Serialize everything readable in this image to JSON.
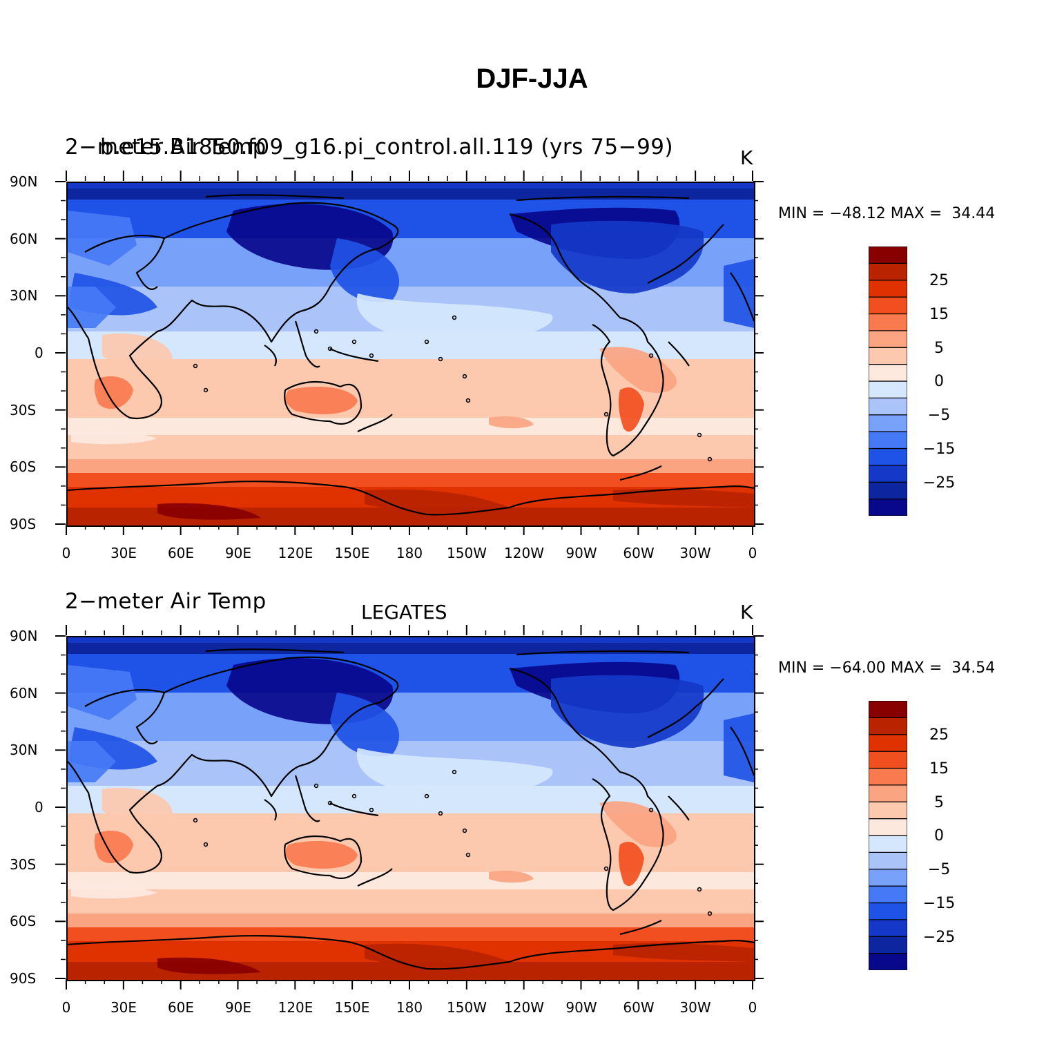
{
  "title": "DJF-JJA",
  "colors": {
    "levels": [
      "#08088c",
      "#0d259e",
      "#1538c8",
      "#1f52e6",
      "#4679f5",
      "#78a1fa",
      "#aac4fa",
      "#d5e7fd",
      "#fde8de",
      "#fcc8ae",
      "#fba481",
      "#f97a4f",
      "#f24f20",
      "#e03200",
      "#b92300",
      "#880000"
    ],
    "land_outline": "#000000"
  },
  "color_bar": {
    "labels": [
      "25",
      "15",
      "5",
      "0",
      "−5",
      "−15",
      "−25"
    ],
    "label_boundaries": [
      14,
      12,
      10,
      8,
      6,
      4,
      2
    ]
  },
  "axes": {
    "y_ticks": [
      "90N",
      "60N",
      "30N",
      "0",
      "30S",
      "60S",
      "90S"
    ],
    "x_ticks": [
      "0",
      "30E",
      "60E",
      "90E",
      "120E",
      "150E",
      "180",
      "150W",
      "120W",
      "90W",
      "60W",
      "30W",
      "0"
    ]
  },
  "panels": [
    {
      "left_string": "2−meter Air Temp",
      "overlay_string": "b.e15.B1850.f09_g16.pi_control.all.119 (yrs 75−99)",
      "center_string": "",
      "units": "K",
      "min_label": "MIN = −48.12",
      "max_label": "MAX =  34.44"
    },
    {
      "left_string": "2−meter Air Temp",
      "overlay_string": "",
      "center_string": "LEGATES",
      "units": "K",
      "min_label": "MIN = −64.00",
      "max_label": "MAX =  34.54"
    }
  ]
}
